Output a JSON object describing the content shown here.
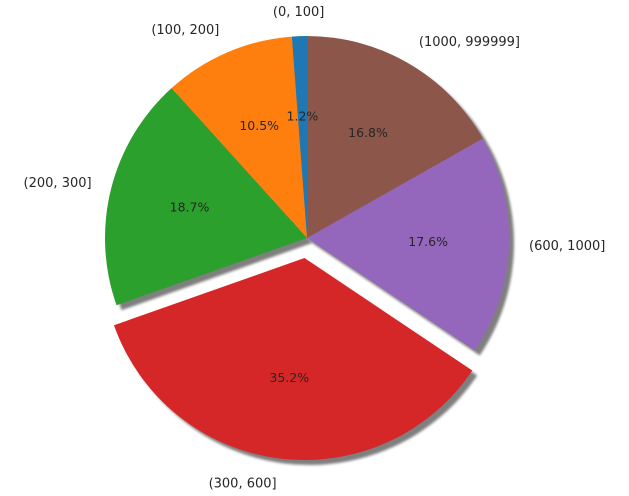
{
  "chart_data": {
    "type": "pie",
    "title": "",
    "categories": [
      "(0, 100]",
      "(100, 200]",
      "(200, 300]",
      "(300, 600]",
      "(600, 1000]",
      "(1000, 999999]"
    ],
    "values": [
      1.2,
      10.5,
      18.7,
      35.2,
      17.6,
      16.8
    ],
    "value_labels": [
      "1.2%",
      "10.5%",
      "18.7%",
      "35.2%",
      "17.6%",
      "16.8%"
    ],
    "colors": [
      "#1f77b4",
      "#ff7f0e",
      "#2ca02c",
      "#d62728",
      "#9467bd",
      "#8c564b"
    ],
    "exploded": [
      false,
      false,
      false,
      true,
      false,
      false
    ],
    "shadow": true,
    "start_angle_deg": 90,
    "direction": "counterclockwise"
  }
}
